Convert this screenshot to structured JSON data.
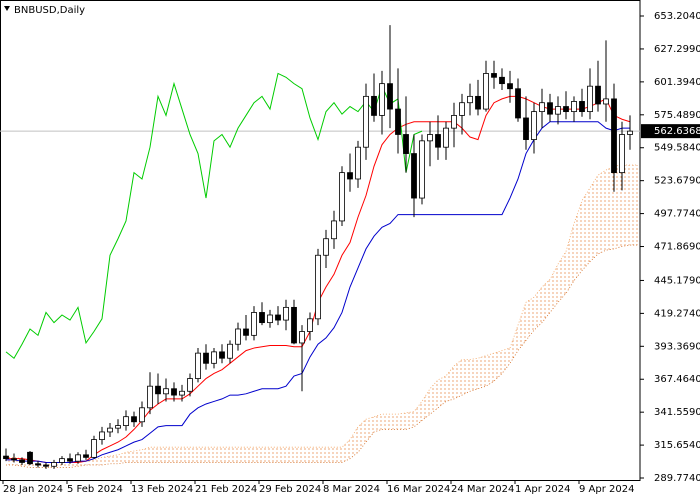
{
  "chart_data": {
    "type": "candlestick",
    "title": "BNBUSD,Daily",
    "categories": [
      "28 Jan 2024",
      null,
      null,
      null,
      null,
      null,
      null,
      null,
      "5 Feb 2024",
      null,
      null,
      null,
      null,
      null,
      null,
      null,
      "13 Feb 2024",
      null,
      null,
      null,
      null,
      null,
      null,
      null,
      "21 Feb 2024",
      null,
      null,
      null,
      null,
      null,
      null,
      null,
      "29 Feb 2024",
      null,
      null,
      null,
      null,
      null,
      null,
      null,
      "8 Mar 2024",
      null,
      null,
      null,
      null,
      null,
      null,
      null,
      "16 Mar 2024",
      null,
      null,
      null,
      null,
      null,
      null,
      null,
      "24 Mar 2024",
      null,
      null,
      null,
      null,
      null,
      null,
      null,
      "1 Apr 2024",
      null,
      null,
      null,
      null,
      null,
      null,
      null,
      "9 Apr 2024",
      null,
      null,
      null,
      null,
      null,
      null,
      null
    ],
    "open": [
      307,
      305,
      304,
      310,
      301,
      300,
      299,
      302,
      305,
      303,
      308,
      306,
      320,
      326,
      329,
      331,
      338,
      334,
      345,
      362,
      356,
      360,
      355,
      358,
      368,
      388,
      380,
      389,
      384,
      395,
      407,
      402,
      420,
      412,
      418,
      414,
      424,
      396,
      405,
      415,
      465,
      478,
      492,
      530,
      525,
      550,
      590,
      575,
      600,
      580,
      560,
      545,
      510,
      555,
      560,
      550,
      565,
      575,
      585,
      590,
      580,
      608,
      605,
      600,
      596,
      573,
      556,
      578,
      585,
      576,
      582,
      578,
      586,
      578,
      598,
      584,
      588,
      530,
      560,
      null
    ],
    "high": [
      313,
      309,
      306,
      311,
      303,
      302,
      304,
      307,
      309,
      310,
      312,
      323,
      330,
      333,
      336,
      343,
      342,
      350,
      373,
      372,
      368,
      365,
      363,
      372,
      392,
      395,
      392,
      395,
      398,
      412,
      418,
      425,
      428,
      422,
      425,
      430,
      430,
      410,
      420,
      470,
      485,
      500,
      535,
      545,
      555,
      600,
      608,
      610,
      646,
      612,
      590,
      560,
      560,
      570,
      575,
      570,
      585,
      592,
      600,
      603,
      618,
      618,
      612,
      610,
      604,
      590,
      585,
      596,
      592,
      590,
      594,
      590,
      596,
      612,
      618,
      634,
      600,
      570,
      575,
      null
    ],
    "low": [
      303,
      302,
      300,
      300,
      298,
      297,
      297,
      300,
      301,
      301,
      304,
      305,
      316,
      322,
      325,
      327,
      330,
      330,
      340,
      348,
      350,
      350,
      350,
      354,
      365,
      375,
      376,
      380,
      380,
      390,
      398,
      398,
      410,
      408,
      410,
      406,
      395,
      358,
      398,
      410,
      455,
      470,
      488,
      515,
      518,
      540,
      570,
      560,
      565,
      545,
      530,
      495,
      505,
      535,
      540,
      540,
      550,
      560,
      575,
      575,
      578,
      596,
      595,
      585,
      570,
      548,
      545,
      565,
      570,
      568,
      572,
      570,
      574,
      572,
      578,
      570,
      515,
      516,
      548,
      null
    ],
    "close": [
      305,
      304,
      302,
      301,
      300,
      299,
      302,
      305,
      303,
      308,
      306,
      320,
      326,
      329,
      331,
      338,
      334,
      345,
      362,
      356,
      360,
      355,
      358,
      368,
      388,
      380,
      389,
      384,
      395,
      407,
      402,
      420,
      412,
      418,
      414,
      424,
      396,
      405,
      415,
      465,
      478,
      492,
      530,
      525,
      550,
      590,
      575,
      600,
      580,
      560,
      545,
      510,
      555,
      560,
      550,
      565,
      575,
      585,
      590,
      580,
      608,
      605,
      600,
      596,
      573,
      556,
      578,
      585,
      576,
      582,
      578,
      586,
      578,
      598,
      584,
      588,
      530,
      560,
      562.6368,
      null
    ],
    "up_color": "#ffffff",
    "down_color": "#000000",
    "series": [
      {
        "color": "#ff0000",
        "values": [
          305,
          305,
          305,
          304,
          303,
          302,
          302,
          302,
          302,
          302,
          303,
          308,
          312,
          315,
          318,
          322,
          328,
          335,
          343,
          348,
          352,
          352,
          352,
          356,
          362,
          368,
          372,
          375,
          380,
          385,
          390,
          392,
          393,
          394,
          394,
          394,
          393,
          393,
          405,
          428,
          440,
          450,
          465,
          475,
          495,
          512,
          535,
          552,
          560,
          565,
          568,
          570,
          570,
          570,
          570,
          570,
          570,
          565,
          558,
          556,
          575,
          585,
          588,
          590,
          590,
          588,
          585,
          582,
          580,
          580,
          580,
          580,
          580,
          582,
          585,
          588,
          575,
          572,
          570,
          null
        ]
      },
      {
        "color": "#0000cc",
        "values": [
          304,
          304,
          303,
          303,
          303,
          302,
          302,
          302,
          302,
          303,
          303,
          305,
          308,
          310,
          312,
          315,
          318,
          320,
          325,
          330,
          331,
          331,
          331,
          340,
          345,
          348,
          350,
          352,
          355,
          355,
          356,
          358,
          360,
          360,
          360,
          362,
          370,
          372,
          385,
          395,
          400,
          408,
          420,
          440,
          455,
          470,
          480,
          487,
          490,
          497,
          497,
          497,
          497,
          497,
          497,
          497,
          497,
          497,
          497,
          497,
          497,
          497,
          497,
          510,
          525,
          545,
          556,
          565,
          570,
          570,
          570,
          570,
          570,
          570,
          570,
          565,
          563,
          565,
          565,
          null
        ]
      },
      {
        "color": "#00cc00",
        "values": [
          389,
          384,
          395,
          407,
          402,
          420,
          412,
          418,
          414,
          424,
          396,
          405,
          415,
          465,
          478,
          492,
          530,
          525,
          550,
          590,
          575,
          600,
          580,
          560,
          545,
          510,
          555,
          560,
          550,
          565,
          575,
          585,
          590,
          580,
          608,
          605,
          600,
          596,
          573,
          556,
          578,
          585,
          576,
          582,
          578,
          586,
          578,
          598,
          584,
          588,
          530,
          560,
          562.6368,
          null,
          null,
          null,
          null,
          null,
          null,
          null,
          null,
          null,
          null,
          null,
          null,
          null,
          null,
          null,
          null,
          null,
          null,
          null,
          null,
          null,
          null,
          null,
          null,
          null,
          null,
          null
        ]
      }
    ],
    "cloud": [
      {
        "color": "#f4a460",
        "values": [
          306,
          306,
          305,
          304,
          303,
          302,
          302,
          302,
          302,
          302,
          303,
          304,
          306,
          307,
          308,
          310,
          311,
          312,
          314,
          314,
          314,
          314,
          314,
          314,
          314,
          314,
          314,
          314,
          314,
          314,
          314,
          314,
          314,
          314,
          314,
          314,
          314,
          314,
          314,
          314,
          314,
          314,
          314,
          320,
          330,
          336,
          338,
          340,
          340,
          340,
          341,
          342,
          350,
          360,
          367,
          370,
          378,
          383,
          383,
          384,
          386,
          388,
          390,
          392,
          410,
          428,
          432,
          440,
          446,
          458,
          468,
          490,
          508,
          518,
          528,
          532,
          535,
          536,
          536,
          536
        ]
      },
      {
        "color": "#d2691e",
        "values": [
          300,
          300,
          299,
          298,
          298,
          298,
          298,
          298,
          298,
          299,
          300,
          300,
          300,
          301,
          301,
          302,
          302,
          302,
          302,
          302,
          302,
          302,
          302,
          302,
          302,
          302,
          302,
          302,
          302,
          302,
          302,
          302,
          302,
          302,
          302,
          302,
          302,
          302,
          302,
          302,
          302,
          302,
          302,
          305,
          310,
          318,
          326,
          328,
          328,
          328,
          328,
          330,
          335,
          340,
          345,
          350,
          352,
          355,
          358,
          360,
          362,
          366,
          372,
          380,
          390,
          398,
          406,
          412,
          420,
          428,
          435,
          445,
          453,
          460,
          466,
          469,
          470,
          472,
          473,
          473
        ]
      }
    ],
    "ylim": [
      288.2,
      665.8
    ],
    "yticks": [
      {
        "value": 653.204,
        "label": "653.2040"
      },
      {
        "value": 627.299,
        "label": "627.2990"
      },
      {
        "value": 601.394,
        "label": "601.3940"
      },
      {
        "value": 575.489,
        "label": "575.4890"
      },
      {
        "value": 549.584,
        "label": "549.5840"
      },
      {
        "value": 523.679,
        "label": "523.6790"
      },
      {
        "value": 497.774,
        "label": "497.7740"
      },
      {
        "value": 471.869,
        "label": "471.8690"
      },
      {
        "value": 445.179,
        "label": "445.1790"
      },
      {
        "value": 419.274,
        "label": "419.2740"
      },
      {
        "value": 393.369,
        "label": "393.3690"
      },
      {
        "value": 367.464,
        "label": "367.4640"
      },
      {
        "value": 341.559,
        "label": "341.5590"
      },
      {
        "value": 315.654,
        "label": "315.6540"
      },
      {
        "value": 289.774,
        "label": "289.7740"
      }
    ],
    "grid": false
  }
}
